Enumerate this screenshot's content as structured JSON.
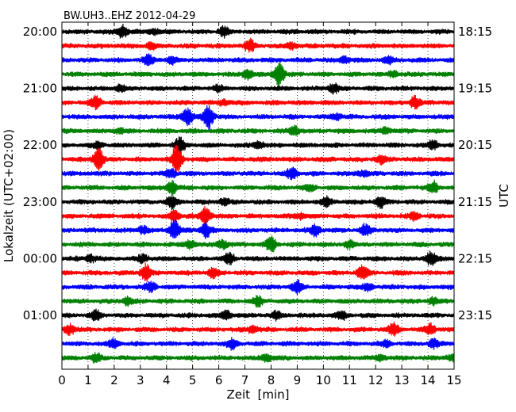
{
  "chart_data": {
    "type": "line",
    "title": "BW.UH3..EHZ 2012-04-29",
    "xlabel": "Zeit  [min]",
    "ylabel_left": "Lokalzeit (UTC+02:00)",
    "ylabel_right": "UTC",
    "xlim": [
      0,
      15
    ],
    "x_ticks": [
      "0",
      "1",
      "2",
      "3",
      "4",
      "5",
      "6",
      "7",
      "8",
      "9",
      "10",
      "11",
      "12",
      "13",
      "14",
      "15"
    ],
    "grid": "vertical dotted",
    "rows_per_hour": 4,
    "row_minutes": 15,
    "trace_colors": [
      "#000000",
      "#ff0000",
      "#0000ff",
      "#008000"
    ],
    "left_hour_labels": [
      "20:00",
      "21:00",
      "22:00",
      "23:00",
      "00:00",
      "01:00"
    ],
    "right_hour_labels": [
      "18:15",
      "19:15",
      "20:15",
      "21:15",
      "22:15",
      "23:15"
    ],
    "traces": [
      {
        "row": 0,
        "events": [
          [
            2.3,
            0.9
          ],
          [
            6.2,
            0.6
          ],
          [
            3.5,
            0.4
          ]
        ]
      },
      {
        "row": 1,
        "events": [
          [
            7.2,
            0.8
          ],
          [
            3.4,
            0.5
          ],
          [
            8.8,
            0.4
          ]
        ]
      },
      {
        "row": 2,
        "events": [
          [
            3.3,
            0.6
          ],
          [
            4.2,
            0.5
          ],
          [
            10.8,
            0.4
          ],
          [
            12.5,
            0.4
          ]
        ]
      },
      {
        "row": 3,
        "events": [
          [
            8.3,
            1.6
          ],
          [
            7.1,
            0.6
          ],
          [
            12.7,
            0.4
          ]
        ]
      },
      {
        "row": 4,
        "events": [
          [
            10.4,
            0.7
          ],
          [
            6.0,
            0.4
          ],
          [
            2.2,
            0.4
          ]
        ]
      },
      {
        "row": 5,
        "events": [
          [
            1.3,
            0.9
          ],
          [
            13.5,
            0.8
          ],
          [
            6.2,
            0.4
          ]
        ]
      },
      {
        "row": 6,
        "events": [
          [
            5.6,
            1.6
          ],
          [
            4.8,
            1.2
          ],
          [
            10.5,
            0.4
          ]
        ]
      },
      {
        "row": 7,
        "events": [
          [
            8.9,
            0.6
          ],
          [
            2.2,
            0.4
          ],
          [
            12.4,
            0.4
          ]
        ]
      },
      {
        "row": 8,
        "events": [
          [
            4.5,
            1.0
          ],
          [
            7.5,
            0.5
          ],
          [
            14.2,
            0.6
          ],
          [
            1.4,
            0.4
          ]
        ]
      },
      {
        "row": 9,
        "events": [
          [
            4.4,
            2.0
          ],
          [
            1.4,
            1.4
          ],
          [
            12.2,
            0.5
          ]
        ]
      },
      {
        "row": 10,
        "events": [
          [
            8.8,
            0.8
          ],
          [
            4.2,
            0.6
          ],
          [
            11.5,
            0.4
          ]
        ]
      },
      {
        "row": 11,
        "events": [
          [
            14.2,
            0.8
          ],
          [
            4.2,
            1.0
          ],
          [
            9.5,
            0.4
          ]
        ]
      },
      {
        "row": 12,
        "events": [
          [
            4.2,
            0.8
          ],
          [
            10.1,
            0.7
          ],
          [
            12.2,
            0.7
          ],
          [
            6.2,
            0.4
          ]
        ]
      },
      {
        "row": 13,
        "events": [
          [
            5.5,
            1.2
          ],
          [
            4.3,
            0.8
          ],
          [
            13.5,
            0.5
          ],
          [
            9.1,
            0.4
          ]
        ]
      },
      {
        "row": 14,
        "events": [
          [
            4.3,
            1.5
          ],
          [
            5.5,
            1.0
          ],
          [
            9.7,
            0.8
          ],
          [
            11.6,
            0.7
          ],
          [
            3.1,
            0.5
          ]
        ]
      },
      {
        "row": 15,
        "events": [
          [
            6.1,
            0.7
          ],
          [
            8.0,
            1.0
          ],
          [
            4.9,
            0.6
          ],
          [
            11.0,
            0.5
          ]
        ]
      },
      {
        "row": 16,
        "events": [
          [
            6.4,
            0.8
          ],
          [
            14.1,
            0.9
          ],
          [
            1.1,
            0.5
          ],
          [
            3.1,
            0.5
          ]
        ]
      },
      {
        "row": 17,
        "events": [
          [
            11.5,
            1.0
          ],
          [
            3.2,
            1.2
          ],
          [
            5.8,
            0.6
          ]
        ]
      },
      {
        "row": 18,
        "events": [
          [
            9.0,
            0.8
          ],
          [
            3.4,
            0.6
          ],
          [
            11.7,
            0.5
          ]
        ]
      },
      {
        "row": 19,
        "events": [
          [
            7.5,
            0.6
          ],
          [
            2.5,
            0.5
          ],
          [
            14.2,
            0.4
          ]
        ]
      },
      {
        "row": 20,
        "events": [
          [
            1.3,
            0.6
          ],
          [
            6.3,
            0.6
          ],
          [
            8.2,
            0.5
          ],
          [
            10.7,
            0.5
          ]
        ]
      },
      {
        "row": 21,
        "events": [
          [
            0.3,
            0.7
          ],
          [
            12.7,
            0.8
          ],
          [
            14.1,
            0.7
          ],
          [
            7.3,
            0.5
          ]
        ]
      },
      {
        "row": 22,
        "events": [
          [
            2.0,
            0.6
          ],
          [
            6.5,
            0.6
          ],
          [
            14.2,
            0.6
          ],
          [
            12.4,
            0.4
          ]
        ]
      },
      {
        "row": 23,
        "events": [
          [
            1.3,
            0.5
          ],
          [
            7.8,
            0.5
          ],
          [
            12.2,
            0.4
          ],
          [
            14.9,
            0.4
          ]
        ]
      }
    ]
  }
}
